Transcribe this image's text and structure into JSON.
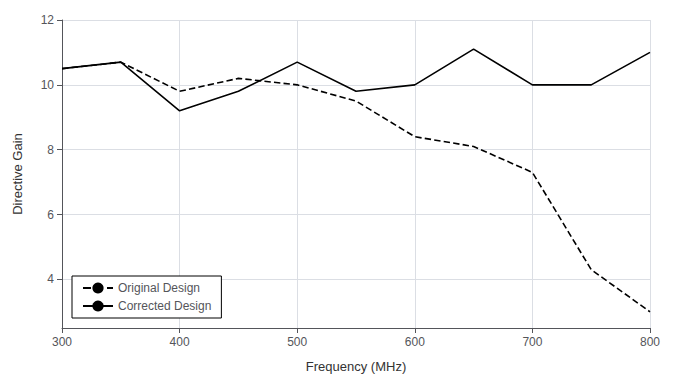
{
  "chart_data": {
    "type": "line",
    "xlabel": "Frequency (MHz)",
    "ylabel": "Directive Gain",
    "x": [
      300,
      350,
      400,
      450,
      500,
      550,
      600,
      650,
      700,
      750,
      800
    ],
    "series": [
      {
        "name": "Original Design",
        "color": "#000000",
        "line_style": "dashed",
        "values": [
          10.5,
          10.7,
          9.8,
          10.2,
          10.0,
          9.5,
          8.4,
          8.1,
          7.3,
          4.3,
          3.0
        ]
      },
      {
        "name": "Corrected Design",
        "color": "#000000",
        "line_style": "solid",
        "values": [
          10.5,
          10.7,
          9.2,
          9.8,
          10.7,
          9.8,
          10.0,
          11.1,
          10.0,
          10.0,
          11.0
        ]
      }
    ],
    "xlim": [
      300,
      800
    ],
    "xticks": [
      300,
      400,
      500,
      600,
      700,
      800
    ],
    "ylim": [
      2.5,
      12
    ],
    "yticks": [
      4,
      6,
      8,
      10,
      12
    ],
    "grid": true,
    "legend": "lower left"
  }
}
